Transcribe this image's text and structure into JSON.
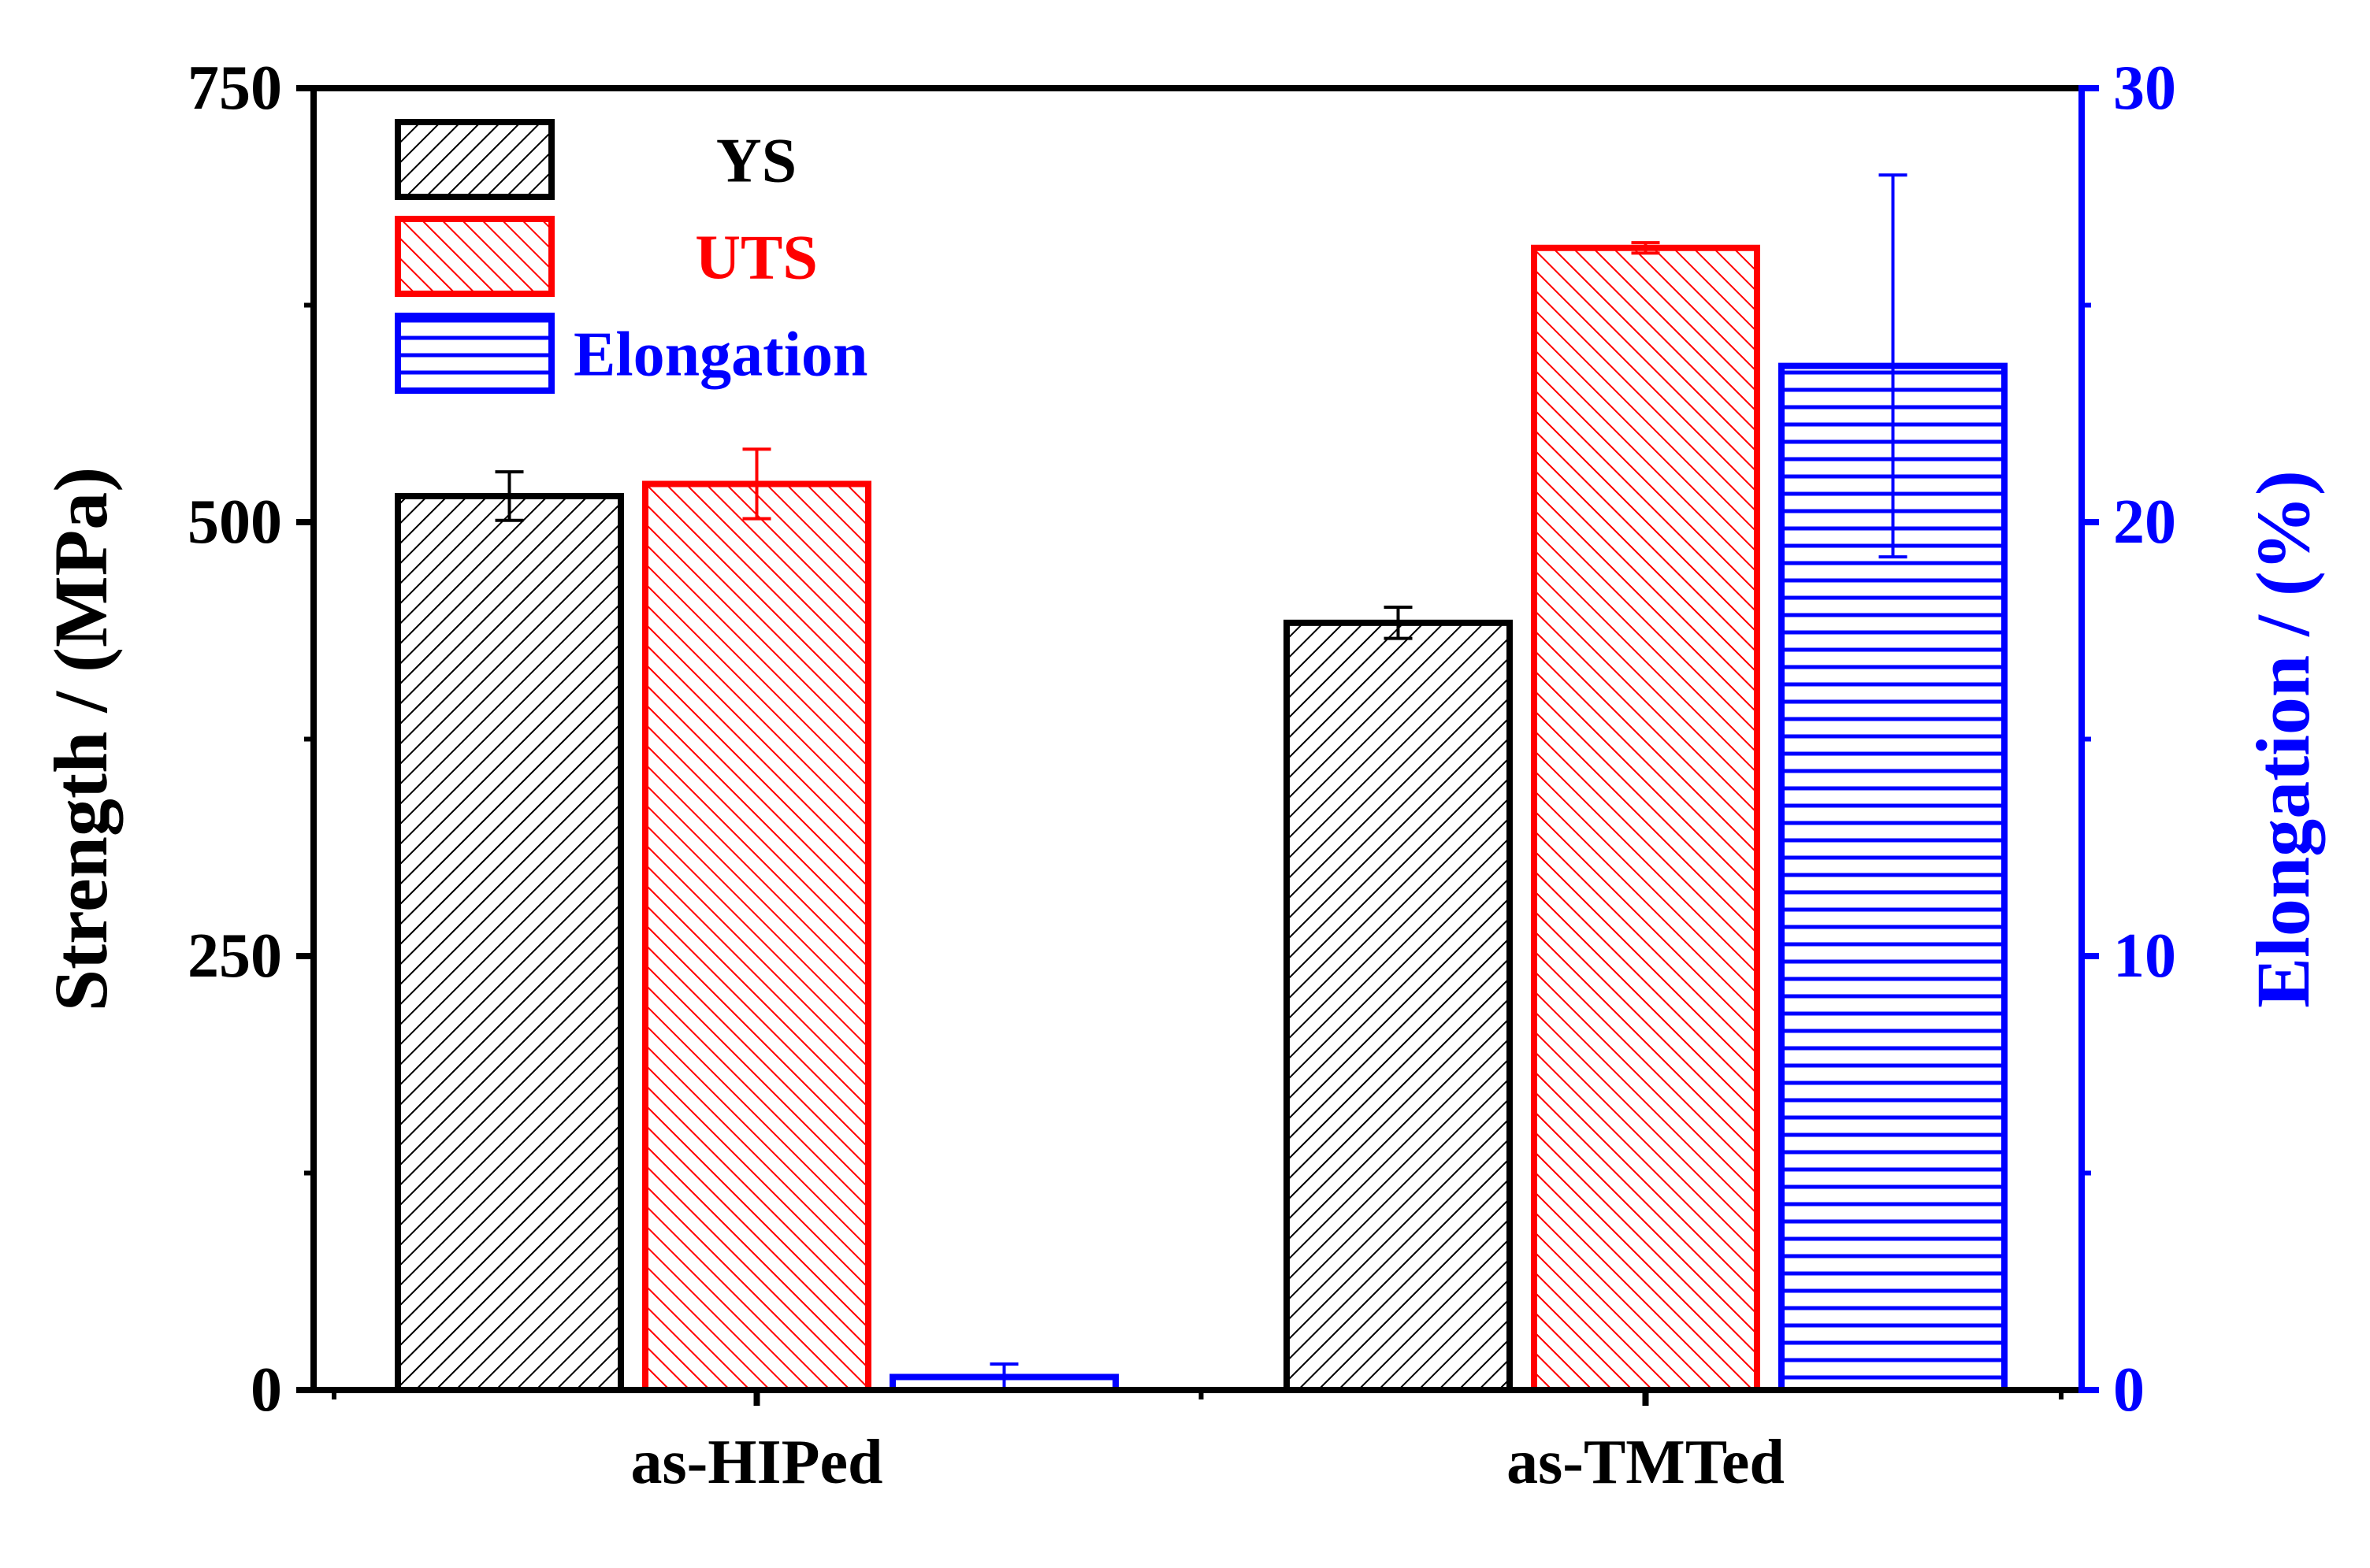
{
  "chart_data": {
    "type": "bar",
    "categories": [
      "as-HIPed",
      "as-TMTed"
    ],
    "series": [
      {
        "name": "YS",
        "axis": "left",
        "values": [
          515,
          442
        ],
        "errors": [
          14,
          9
        ],
        "color": "#000000",
        "pattern": "diag-black"
      },
      {
        "name": "UTS",
        "axis": "left",
        "values": [
          522,
          658
        ],
        "errors": [
          20,
          3
        ],
        "color": "#ff0000",
        "pattern": "diag-red"
      },
      {
        "name": "Elongation",
        "axis": "right",
        "values": [
          0.3,
          23.6
        ],
        "errors": [
          0.3,
          4.4
        ],
        "color": "#0000ff",
        "pattern": "horiz-blue"
      }
    ],
    "ylabel": "Strength / (MPa)",
    "ylabel_right": "Elongation / (%)",
    "ylim": [
      0,
      750
    ],
    "ylim_right": [
      0,
      30
    ],
    "yticks": [
      "0",
      "250",
      "500",
      "750"
    ],
    "yticks_right": [
      "0",
      "10",
      "20",
      "30"
    ],
    "legend_position": "top-left",
    "colors": {
      "left_axis": "#000000",
      "right_axis": "#0000ff"
    }
  }
}
